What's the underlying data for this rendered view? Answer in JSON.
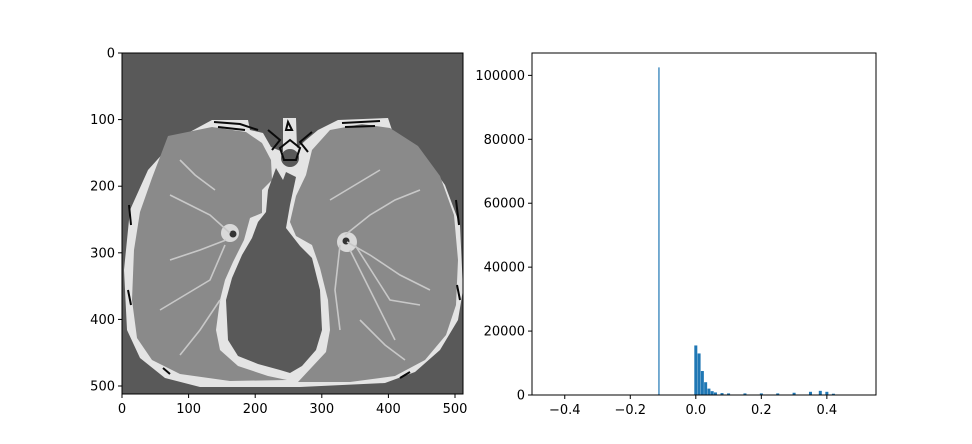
{
  "chart_data": [
    {
      "type": "image",
      "x": [
        0,
        512
      ],
      "y": [
        0,
        512
      ],
      "xticks": [
        "0",
        "100",
        "200",
        "300",
        "400",
        "500"
      ],
      "yticks": [
        "0",
        "100",
        "200",
        "300",
        "400",
        "500"
      ],
      "colors": {
        "background": "#595959",
        "bone": "#e6e6e6",
        "lung": "#8a8a8a",
        "vessel": "#c4c4c4",
        "mask": "#0a0a0a"
      }
    },
    {
      "type": "bar",
      "x": [
        -0.1125,
        0.0,
        0.01,
        0.02,
        0.03,
        0.04,
        0.05,
        0.06,
        0.08,
        0.1,
        0.15,
        0.2,
        0.25,
        0.3,
        0.35,
        0.38,
        0.4,
        0.42
      ],
      "values": [
        102500,
        15500,
        13000,
        7500,
        4000,
        2000,
        1200,
        800,
        600,
        500,
        500,
        500,
        500,
        700,
        1000,
        1300,
        1000,
        400
      ],
      "xlim": [
        -0.5,
        0.55
      ],
      "ylim": [
        0,
        107000
      ],
      "xticks": [
        "−0.4",
        "−0.2",
        "0.0",
        "0.2",
        "0.4"
      ],
      "yticks": [
        "0",
        "20000",
        "40000",
        "60000",
        "80000",
        "100000"
      ],
      "colors": {
        "bar": "#1f77b4"
      }
    }
  ]
}
